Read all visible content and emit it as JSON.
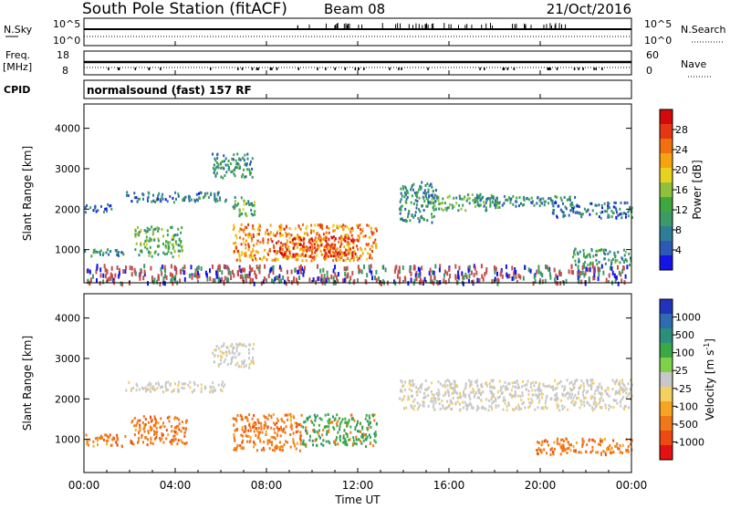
{
  "header": {
    "station": "South Pole Station (fitACF)",
    "beam": "Beam 08",
    "date": "21/Oct/2016"
  },
  "status_panels": {
    "nsky_label": "N.Sky",
    "nsky_ticks": [
      "10^5",
      "10^0"
    ],
    "nsearch_label": "N.Search",
    "nsearch_ticks": [
      "10^5",
      "10^0"
    ],
    "freq_label": "Freq.",
    "freq_unit": "[MHz]",
    "freq_ticks": [
      "18",
      "8"
    ],
    "nave_label": "Nave",
    "nave_ticks": [
      "60",
      "0"
    ],
    "cpid_label": "CPID",
    "cpid_value": "normalsound (fast) 157 RF"
  },
  "chart_data": [
    {
      "type": "heatmap",
      "name": "power",
      "ylabel": "Slant Range [km]",
      "xlabel": "",
      "x_ticks": [
        "00:00",
        "04:00",
        "08:00",
        "12:00",
        "16:00",
        "20:00",
        "00:00"
      ],
      "x_range_hours": [
        0,
        24
      ],
      "y_ticks": [
        1000,
        2000,
        3000,
        4000
      ],
      "ylim": [
        180,
        4600
      ],
      "colorbar": {
        "title": "Power [dB]",
        "ticks": [
          "4",
          "8",
          "12",
          "16",
          "20",
          "24",
          "28"
        ],
        "range": [
          0,
          30
        ],
        "colors": [
          "#1414e6",
          "#2a5ab5",
          "#2e7d96",
          "#3d9966",
          "#3ea83e",
          "#8fc23a",
          "#e8d21e",
          "#f5a40f",
          "#f06f0f",
          "#e53812",
          "#d40a0a"
        ]
      },
      "echo_regions": [
        {
          "t": [
            0.0,
            1.7
          ],
          "r": [
            850,
            1050
          ],
          "level": 8
        },
        {
          "t": [
            2.2,
            4.3
          ],
          "r": [
            850,
            1600
          ],
          "level": 12
        },
        {
          "t": [
            0.0,
            1.2
          ],
          "r": [
            1950,
            2150
          ],
          "level": 6
        },
        {
          "t": [
            1.8,
            6.2
          ],
          "r": [
            2200,
            2450
          ],
          "level": 7
        },
        {
          "t": [
            5.6,
            7.4
          ],
          "r": [
            2800,
            3400
          ],
          "level": 9
        },
        {
          "t": [
            6.5,
            7.5
          ],
          "r": [
            1850,
            2350
          ],
          "level": 12
        },
        {
          "t": [
            6.5,
            12.8
          ],
          "r": [
            750,
            1650
          ],
          "level": 22
        },
        {
          "t": [
            8.2,
            11.9
          ],
          "r": [
            850,
            1350
          ],
          "level": 26
        },
        {
          "t": [
            13.8,
            15.4
          ],
          "r": [
            1700,
            2700
          ],
          "level": 8
        },
        {
          "t": [
            15.0,
            18.2
          ],
          "r": [
            2000,
            2400
          ],
          "level": 11
        },
        {
          "t": [
            17.0,
            21.5
          ],
          "r": [
            2100,
            2350
          ],
          "level": 8
        },
        {
          "t": [
            20.5,
            24.0
          ],
          "r": [
            1800,
            2200
          ],
          "level": 6
        },
        {
          "t": [
            21.4,
            24.0
          ],
          "r": [
            650,
            1050
          ],
          "level": 10
        },
        {
          "t": [
            0.0,
            24.0
          ],
          "r": [
            200,
            650
          ],
          "level": 14
        }
      ]
    },
    {
      "type": "heatmap",
      "name": "velocity",
      "ylabel": "Slant Range [km]",
      "xlabel": "Time UT",
      "x_ticks": [
        "00:00",
        "04:00",
        "08:00",
        "12:00",
        "16:00",
        "20:00",
        "00:00"
      ],
      "x_range_hours": [
        0,
        24
      ],
      "y_ticks": [
        1000,
        2000,
        3000,
        4000
      ],
      "ylim": [
        180,
        4600
      ],
      "colorbar": {
        "title": "Velocity [m s",
        "title_sup": "-1",
        "title_end": "]",
        "ticks": [
          "1000",
          "500",
          "100",
          "25",
          "-25",
          "-100",
          "-500",
          "-1000"
        ],
        "colors": [
          "#2233bb",
          "#2e6bb0",
          "#2c8f7a",
          "#3aa844",
          "#7fd04a",
          "#c8c8c8",
          "#f3d060",
          "#f7a520",
          "#f07818",
          "#ec4a10",
          "#e51010"
        ]
      },
      "echo_regions": [
        {
          "t": [
            0.0,
            1.8
          ],
          "r": [
            850,
            1150
          ],
          "class": "orange"
        },
        {
          "t": [
            2.0,
            4.5
          ],
          "r": [
            900,
            1600
          ],
          "class": "orange"
        },
        {
          "t": [
            1.8,
            6.2
          ],
          "r": [
            2200,
            2450
          ],
          "class": "gray"
        },
        {
          "t": [
            5.6,
            7.4
          ],
          "r": [
            2800,
            3400
          ],
          "class": "gray"
        },
        {
          "t": [
            6.5,
            9.5
          ],
          "r": [
            750,
            1650
          ],
          "class": "orange"
        },
        {
          "t": [
            9.5,
            12.8
          ],
          "r": [
            850,
            1650
          ],
          "class": "green"
        },
        {
          "t": [
            13.8,
            24.0
          ],
          "r": [
            1750,
            2500
          ],
          "class": "gray"
        },
        {
          "t": [
            19.8,
            24.0
          ],
          "r": [
            650,
            1050
          ],
          "class": "orange"
        }
      ]
    }
  ]
}
